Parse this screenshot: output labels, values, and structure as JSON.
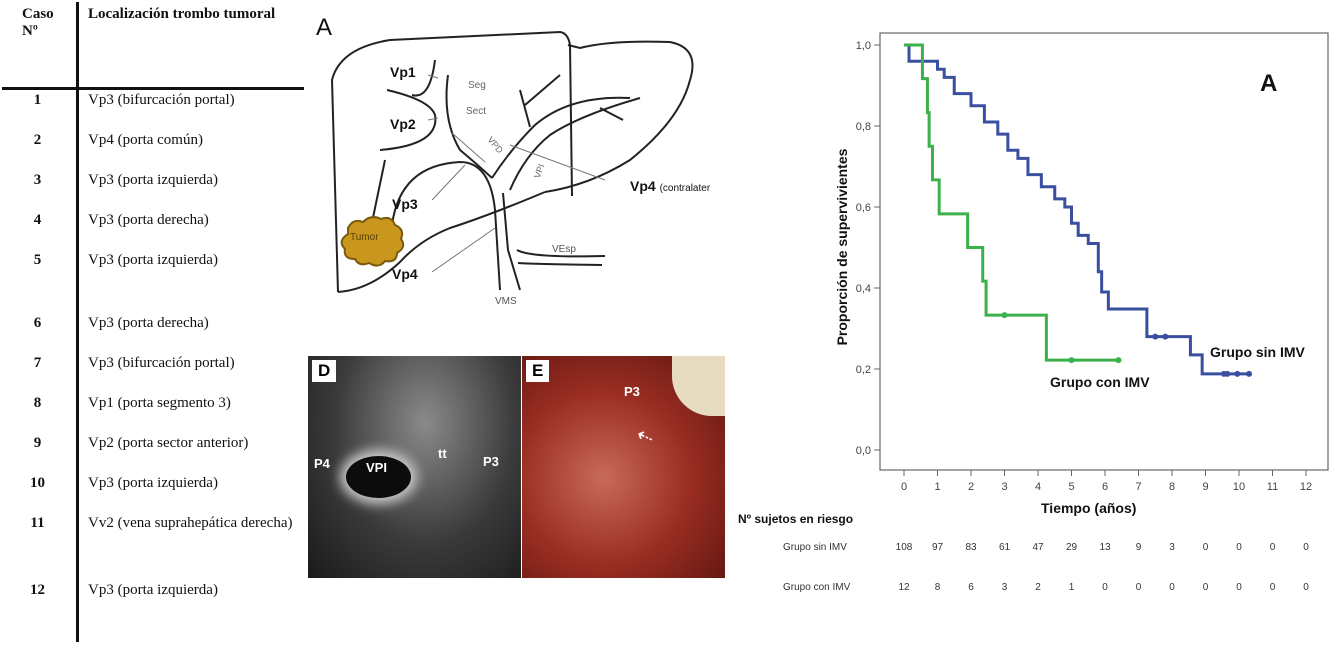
{
  "table": {
    "headers": [
      "Caso Nº",
      "Localización trombo tumoral"
    ],
    "rows": [
      {
        "case": "1",
        "location": "Vp3 (bifurcación portal)"
      },
      {
        "case": "2",
        "location": "Vp4 (porta común)"
      },
      {
        "case": "3",
        "location": "Vp3 (porta izquierda)"
      },
      {
        "case": "4",
        "location": "Vp3  (porta derecha)"
      },
      {
        "case": "5",
        "location": "Vp3 (porta izquierda)"
      },
      {
        "case": "6",
        "location": "Vp3 (porta derecha)"
      },
      {
        "case": "7",
        "location": "Vp3 (bifurcación portal)"
      },
      {
        "case": "8",
        "location": "Vp1 (porta segmento 3)"
      },
      {
        "case": "9",
        "location": "Vp2 (porta sector anterior)"
      },
      {
        "case": "10",
        "location": "Vp3 (porta izquierda)"
      },
      {
        "case": "11",
        "location": "Vv2 (vena suprahepática derecha)"
      },
      {
        "case": "12",
        "location": "Vp3 (porta izquierda)"
      }
    ]
  },
  "diagram": {
    "panel": "A",
    "labels": {
      "vp1": "Vp1",
      "vp2": "Vp2",
      "vp3": "Vp3",
      "vp4": "Vp4",
      "vp4c": "Vp4",
      "contra": "(contralater",
      "seg": "Seg",
      "sect": "Sect",
      "vpd": "VPD",
      "vpi": "VPI",
      "tumor": "Tumor",
      "vesp": "VEsp",
      "vms": "VMS"
    },
    "tumor_color": "#c9961e"
  },
  "images": {
    "d": {
      "panel": "D",
      "labels": [
        "P4",
        "VPI",
        "tt",
        "P3"
      ]
    },
    "e": {
      "panel": "E",
      "labels": [
        "P3"
      ]
    }
  },
  "chart_data": {
    "type": "line",
    "subtype": "kaplan-meier",
    "panel_label": "A",
    "xlabel": "Tiempo (años)",
    "ylabel": "Proporción de supervivientes",
    "xlim": [
      0,
      12
    ],
    "ylim": [
      0,
      1
    ],
    "x_ticks": [
      "0",
      "1",
      "2",
      "3",
      "4",
      "5",
      "6",
      "7",
      "8",
      "9",
      "10",
      "11",
      "12"
    ],
    "y_ticks": [
      "0,0",
      "0,2",
      "0,4",
      "0,6",
      "0,8",
      "1,0"
    ],
    "grid": false,
    "series": [
      {
        "name": "Grupo sin IMV",
        "color": "#3a4fa0",
        "steps": [
          [
            0,
            1.0
          ],
          [
            0.15,
            0.96
          ],
          [
            1.0,
            0.94
          ],
          [
            1.2,
            0.92
          ],
          [
            1.5,
            0.88
          ],
          [
            2.0,
            0.85
          ],
          [
            2.4,
            0.81
          ],
          [
            2.8,
            0.78
          ],
          [
            3.1,
            0.74
          ],
          [
            3.4,
            0.72
          ],
          [
            3.7,
            0.68
          ],
          [
            4.1,
            0.65
          ],
          [
            4.5,
            0.62
          ],
          [
            4.8,
            0.6
          ],
          [
            5.0,
            0.56
          ],
          [
            5.2,
            0.53
          ],
          [
            5.5,
            0.51
          ],
          [
            5.8,
            0.44
          ],
          [
            5.9,
            0.39
          ],
          [
            6.1,
            0.348
          ],
          [
            7.25,
            0.28
          ],
          [
            8.55,
            0.235
          ],
          [
            8.9,
            0.188
          ]
        ],
        "end": 10.3,
        "censored": [
          [
            7.5,
            0.28
          ],
          [
            7.8,
            0.28
          ],
          [
            9.55,
            0.188
          ],
          [
            9.65,
            0.188
          ],
          [
            9.95,
            0.188
          ],
          [
            10.3,
            0.188
          ]
        ]
      },
      {
        "name": "Grupo con IMV",
        "color": "#3cb04a",
        "steps": [
          [
            0,
            1.0
          ],
          [
            0.55,
            0.917
          ],
          [
            0.7,
            0.833
          ],
          [
            0.75,
            0.75
          ],
          [
            0.85,
            0.667
          ],
          [
            1.05,
            0.583
          ],
          [
            1.9,
            0.5
          ],
          [
            2.35,
            0.417
          ],
          [
            2.45,
            0.333
          ],
          [
            4.25,
            0.222
          ]
        ],
        "end": 6.4,
        "censored": [
          [
            3.0,
            0.333
          ],
          [
            5.0,
            0.222
          ],
          [
            6.4,
            0.222
          ]
        ]
      }
    ],
    "risk_table": {
      "title": "Nº sujetos en riesgo",
      "rows": [
        {
          "label": "Grupo sin IMV",
          "values": [
            "108",
            "97",
            "83",
            "61",
            "47",
            "29",
            "13",
            "9",
            "3",
            "0",
            "0",
            "0",
            "0"
          ]
        },
        {
          "label": "Grupo con IMV",
          "values": [
            "12",
            "8",
            "6",
            "3",
            "2",
            "1",
            "0",
            "0",
            "0",
            "0",
            "0",
            "0",
            "0"
          ]
        }
      ]
    }
  }
}
